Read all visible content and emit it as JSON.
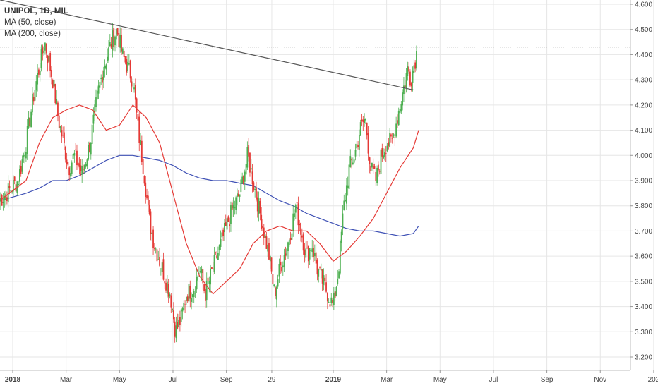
{
  "legend": {
    "symbol": "UNIPOL, 1D, MIL",
    "ma50": "MA (50, close)",
    "ma200": "MA (200, close)"
  },
  "colors": {
    "up": "#4caf50",
    "down": "#e53935",
    "ma50": "#e53935",
    "ma200": "#3f51b5",
    "trendline": "#555555",
    "grid": "#e6e6e6"
  },
  "chart_data": {
    "type": "candlestick",
    "title": "UNIPOL, 1D, MIL",
    "y_ticks": [
      "4.600",
      "4.500",
      "4.400",
      "4.300",
      "4.200",
      "4.100",
      "4.000",
      "3.900",
      "3.800",
      "3.700",
      "3.600",
      "3.500",
      "3.400",
      "3.300",
      "3.200"
    ],
    "ylim": [
      3.2,
      4.6
    ],
    "x_ticks": [
      {
        "label": "2018",
        "bold": true,
        "x": 0
      },
      {
        "label": "Mar",
        "bold": false,
        "x": 2
      },
      {
        "label": "May",
        "bold": false,
        "x": 4
      },
      {
        "label": "Jul",
        "bold": false,
        "x": 6
      },
      {
        "label": "Sep",
        "bold": false,
        "x": 8
      },
      {
        "label": "29",
        "bold": false,
        "x": 9.7
      },
      {
        "label": "2019",
        "bold": true,
        "x": 12
      },
      {
        "label": "Mar",
        "bold": false,
        "x": 14
      },
      {
        "label": "May",
        "bold": false,
        "x": 16
      },
      {
        "label": "Jul",
        "bold": false,
        "x": 18
      },
      {
        "label": "Sep",
        "bold": false,
        "x": 20
      },
      {
        "label": "Nov",
        "bold": false,
        "x": 22
      },
      {
        "label": "202",
        "bold": false,
        "x": 24
      }
    ],
    "last_price_line": 4.43,
    "price_path": [
      [
        -0.5,
        3.82
      ],
      [
        0.2,
        3.9
      ],
      [
        0.5,
        4.05
      ],
      [
        0.8,
        4.25
      ],
      [
        1.0,
        4.35
      ],
      [
        1.2,
        4.45
      ],
      [
        1.5,
        4.3
      ],
      [
        1.7,
        4.15
      ],
      [
        1.9,
        4.05
      ],
      [
        2.1,
        3.95
      ],
      [
        2.3,
        4.0
      ],
      [
        2.6,
        3.93
      ],
      [
        2.9,
        4.05
      ],
      [
        3.2,
        4.25
      ],
      [
        3.4,
        4.35
      ],
      [
        3.7,
        4.45
      ],
      [
        3.9,
        4.5
      ],
      [
        4.1,
        4.4
      ],
      [
        4.3,
        4.35
      ],
      [
        4.5,
        4.3
      ],
      [
        4.7,
        4.1
      ],
      [
        4.9,
        3.95
      ],
      [
        5.1,
        3.75
      ],
      [
        5.3,
        3.65
      ],
      [
        5.6,
        3.55
      ],
      [
        5.9,
        3.45
      ],
      [
        6.1,
        3.3
      ],
      [
        6.3,
        3.35
      ],
      [
        6.5,
        3.45
      ],
      [
        6.8,
        3.48
      ],
      [
        7.0,
        3.55
      ],
      [
        7.2,
        3.45
      ],
      [
        7.5,
        3.55
      ],
      [
        7.8,
        3.65
      ],
      [
        8.1,
        3.75
      ],
      [
        8.3,
        3.8
      ],
      [
        8.5,
        3.85
      ],
      [
        8.8,
        4.0
      ],
      [
        9.0,
        3.9
      ],
      [
        9.2,
        3.8
      ],
      [
        9.4,
        3.7
      ],
      [
        9.6,
        3.6
      ],
      [
        9.8,
        3.45
      ],
      [
        10.0,
        3.55
      ],
      [
        10.3,
        3.65
      ],
      [
        10.6,
        3.8
      ],
      [
        10.8,
        3.7
      ],
      [
        11.0,
        3.6
      ],
      [
        11.2,
        3.65
      ],
      [
        11.4,
        3.55
      ],
      [
        11.6,
        3.5
      ],
      [
        11.8,
        3.45
      ],
      [
        12.0,
        3.4
      ],
      [
        12.2,
        3.55
      ],
      [
        12.4,
        3.8
      ],
      [
        12.6,
        3.95
      ],
      [
        12.8,
        4.0
      ],
      [
        13.0,
        4.1
      ],
      [
        13.2,
        4.15
      ],
      [
        13.4,
        3.95
      ],
      [
        13.6,
        3.9
      ],
      [
        13.8,
        4.0
      ],
      [
        14.0,
        4.05
      ],
      [
        14.2,
        4.05
      ],
      [
        14.4,
        4.15
      ],
      [
        14.6,
        4.25
      ],
      [
        14.8,
        4.35
      ],
      [
        14.9,
        4.3
      ],
      [
        15.0,
        4.35
      ],
      [
        15.15,
        4.42
      ]
    ],
    "series": [
      {
        "name": "MA (50, close)",
        "color": "#e53935",
        "values": [
          [
            -0.5,
            3.82
          ],
          [
            0.5,
            3.9
          ],
          [
            1.0,
            4.05
          ],
          [
            1.5,
            4.15
          ],
          [
            2.0,
            4.18
          ],
          [
            2.5,
            4.2
          ],
          [
            3.0,
            4.18
          ],
          [
            3.5,
            4.1
          ],
          [
            4.0,
            4.12
          ],
          [
            4.5,
            4.2
          ],
          [
            5.0,
            4.15
          ],
          [
            5.5,
            4.05
          ],
          [
            6.0,
            3.85
          ],
          [
            6.5,
            3.65
          ],
          [
            7.0,
            3.52
          ],
          [
            7.5,
            3.45
          ],
          [
            8.0,
            3.5
          ],
          [
            8.5,
            3.55
          ],
          [
            9.0,
            3.65
          ],
          [
            9.5,
            3.7
          ],
          [
            10.0,
            3.72
          ],
          [
            10.5,
            3.7
          ],
          [
            11.0,
            3.7
          ],
          [
            11.5,
            3.65
          ],
          [
            12.0,
            3.58
          ],
          [
            12.5,
            3.62
          ],
          [
            13.0,
            3.68
          ],
          [
            13.5,
            3.75
          ],
          [
            14.0,
            3.85
          ],
          [
            14.5,
            3.95
          ],
          [
            15.0,
            4.03
          ],
          [
            15.2,
            4.1
          ]
        ]
      },
      {
        "name": "MA (200, close)",
        "color": "#3f51b5",
        "values": [
          [
            -0.5,
            3.82
          ],
          [
            0.5,
            3.85
          ],
          [
            1.0,
            3.87
          ],
          [
            1.5,
            3.9
          ],
          [
            2.0,
            3.9
          ],
          [
            2.5,
            3.92
          ],
          [
            3.0,
            3.95
          ],
          [
            3.5,
            3.98
          ],
          [
            4.0,
            4.0
          ],
          [
            4.5,
            4.0
          ],
          [
            5.0,
            3.99
          ],
          [
            5.5,
            3.98
          ],
          [
            6.0,
            3.96
          ],
          [
            6.5,
            3.93
          ],
          [
            7.0,
            3.91
          ],
          [
            7.5,
            3.9
          ],
          [
            8.0,
            3.9
          ],
          [
            8.5,
            3.89
          ],
          [
            9.0,
            3.88
          ],
          [
            9.5,
            3.85
          ],
          [
            10.0,
            3.82
          ],
          [
            10.5,
            3.8
          ],
          [
            11.0,
            3.77
          ],
          [
            11.5,
            3.75
          ],
          [
            12.0,
            3.73
          ],
          [
            12.5,
            3.71
          ],
          [
            13.0,
            3.7
          ],
          [
            13.5,
            3.7
          ],
          [
            14.0,
            3.69
          ],
          [
            14.5,
            3.68
          ],
          [
            15.0,
            3.69
          ],
          [
            15.2,
            3.72
          ]
        ]
      }
    ],
    "trendline": [
      [
        -0.6,
        4.62
      ],
      [
        15.0,
        4.26
      ]
    ]
  }
}
